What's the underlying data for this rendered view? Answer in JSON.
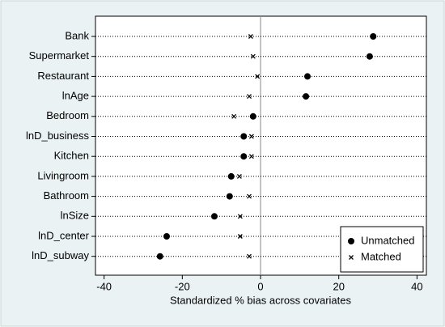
{
  "chart_data": {
    "type": "dot",
    "x_label": "Standardized % bias across covariates",
    "categories": [
      "Bank",
      "Supermarket",
      "Restaurant",
      "lnAge",
      "Bedroom",
      "lnD_business",
      "Kitchen",
      "Livingroom",
      "Bathroom",
      "lnSize",
      "lnD_center",
      "lnD_subway"
    ],
    "series": [
      {
        "name": "Unmatched",
        "marker": "circle",
        "color": "#000000",
        "values": [
          28.8,
          27.9,
          12.0,
          11.6,
          -1.9,
          -4.3,
          -4.3,
          -7.5,
          -7.9,
          -11.8,
          -24.0,
          -25.7
        ]
      },
      {
        "name": "Matched",
        "marker": "x",
        "color": "#000000",
        "values": [
          -2.5,
          -1.9,
          -0.8,
          -2.9,
          -6.8,
          -2.3,
          -2.3,
          -5.4,
          -2.9,
          -5.2,
          -5.2,
          -2.9
        ]
      }
    ],
    "xlim": [
      -42.2,
      42.4
    ],
    "xticks": [
      -40,
      -20,
      0,
      20,
      40
    ],
    "legend": "bottom-right"
  }
}
